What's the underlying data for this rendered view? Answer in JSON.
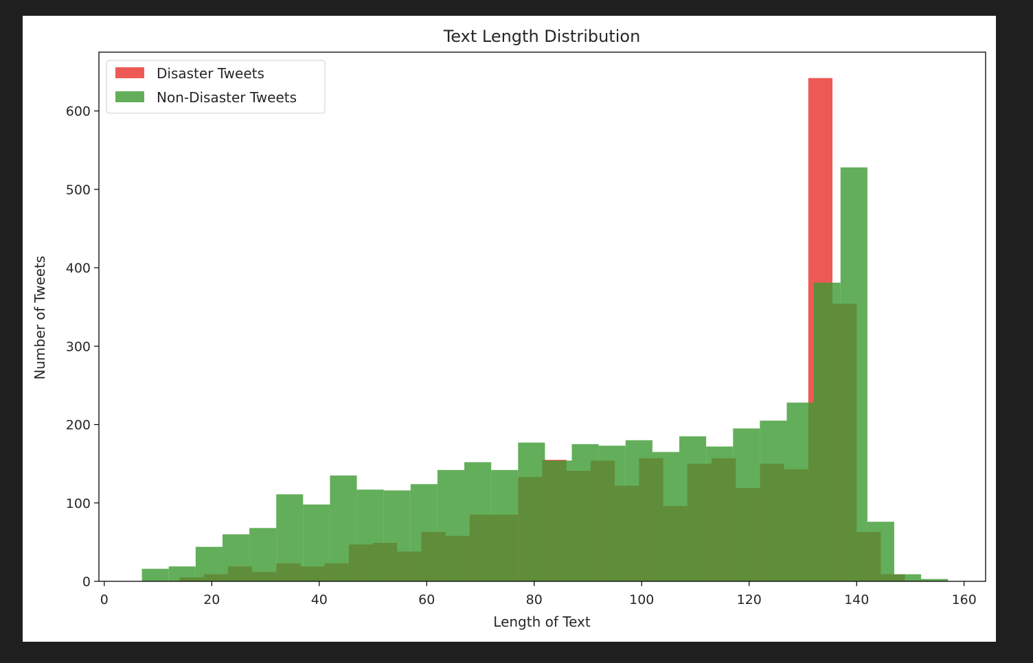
{
  "chart_data": {
    "type": "bar",
    "histogram": true,
    "title": "Text Length Distribution",
    "xlabel": "Length of Text",
    "ylabel": "Number of Tweets",
    "xlim": [
      -1,
      164
    ],
    "ylim": [
      0,
      675
    ],
    "xticks": [
      0,
      20,
      40,
      60,
      80,
      100,
      120,
      140,
      160
    ],
    "yticks": [
      0,
      100,
      200,
      300,
      400,
      500,
      600
    ],
    "grid": false,
    "legend_position": "top-left",
    "series": [
      {
        "name": "Disaster Tweets",
        "color": "#e8312a",
        "alpha": 0.8,
        "bin_edges": [
          14,
          18.5,
          23,
          27.5,
          32,
          36.5,
          41,
          45.5,
          50,
          54.5,
          59,
          63.5,
          68,
          72.5,
          77,
          81.5,
          86,
          90.5,
          95,
          99.5,
          104,
          108.5,
          113,
          117.5,
          122,
          126.5,
          131,
          135.5,
          140,
          144.5,
          149,
          153.5
        ],
        "values": [
          5,
          9,
          19,
          12,
          23,
          19,
          23,
          47,
          49,
          38,
          63,
          58,
          85,
          85,
          133,
          155,
          141,
          154,
          122,
          157,
          96,
          150,
          157,
          119,
          150,
          143,
          642,
          354,
          63,
          9,
          1
        ]
      },
      {
        "name": "Non-Disaster Tweets",
        "color": "#3c9a32",
        "alpha": 0.8,
        "bin_edges": [
          7,
          12,
          17,
          22,
          27,
          32,
          37,
          42,
          47,
          52,
          57,
          62,
          67,
          72,
          77,
          82,
          87,
          92,
          97,
          102,
          107,
          112,
          117,
          122,
          127,
          132,
          137,
          142,
          147,
          152,
          157
        ],
        "values": [
          16,
          19,
          44,
          60,
          68,
          111,
          98,
          135,
          117,
          116,
          124,
          142,
          152,
          142,
          177,
          154,
          175,
          173,
          180,
          165,
          185,
          172,
          195,
          205,
          228,
          381,
          528,
          76,
          9,
          3
        ]
      }
    ]
  }
}
